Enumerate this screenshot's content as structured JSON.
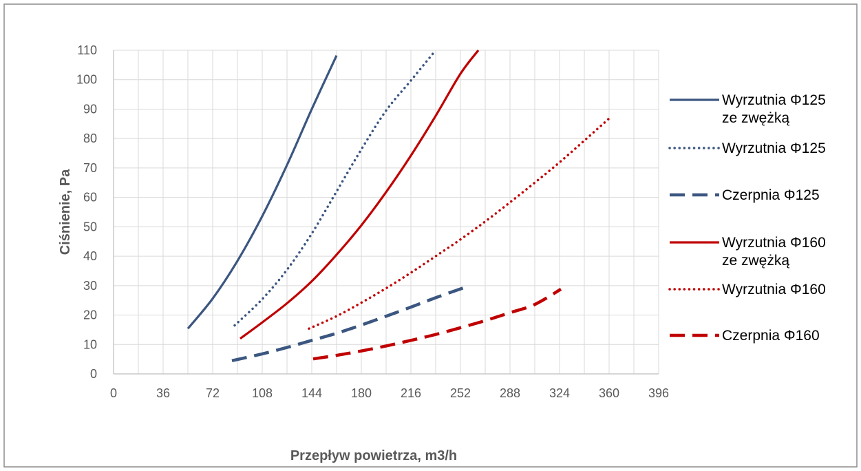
{
  "chart_data": {
    "type": "line",
    "title": "",
    "xlabel": "Przepływ powietrza, m3/h",
    "ylabel": "Ciśnienie, Pa",
    "xlim": [
      0,
      396
    ],
    "ylim": [
      0,
      110
    ],
    "xticks": [
      0,
      36,
      72,
      108,
      144,
      180,
      216,
      252,
      288,
      324,
      360,
      396
    ],
    "yticks": [
      0,
      10,
      20,
      30,
      40,
      50,
      60,
      70,
      80,
      90,
      100,
      110
    ],
    "grid": true,
    "legend_position": "right",
    "series": [
      {
        "name": "Wyrzutnia Φ125 ze zwężką",
        "legend_lines": [
          "Wyrzutnia Φ125",
          "ze zwężką"
        ],
        "color": "#3b5680",
        "style": "solid",
        "points": [
          [
            54,
            15.4
          ],
          [
            72,
            25.6
          ],
          [
            90,
            38.4
          ],
          [
            108,
            53.6
          ],
          [
            126,
            71
          ],
          [
            144,
            90
          ],
          [
            162,
            108.2
          ]
        ]
      },
      {
        "name": "Wyrzutnia Φ125",
        "legend_lines": [
          "Wyrzutnia Φ125"
        ],
        "color": "#3b5680",
        "style": "dotted",
        "points": [
          [
            88,
            16.5
          ],
          [
            108,
            25.4
          ],
          [
            126,
            35.4
          ],
          [
            144,
            47.7
          ],
          [
            162,
            62
          ],
          [
            180,
            76.3
          ],
          [
            198,
            89.5
          ],
          [
            216,
            99.7
          ],
          [
            234,
            110
          ]
        ]
      },
      {
        "name": "Czerpnia Φ125",
        "legend_lines": [
          "Czerpnia Φ125"
        ],
        "color": "#3b5680",
        "style": "dashed",
        "points": [
          [
            86,
            4.5
          ],
          [
            108,
            6.8
          ],
          [
            126,
            9
          ],
          [
            144,
            11.4
          ],
          [
            162,
            13.8
          ],
          [
            180,
            16.6
          ],
          [
            198,
            19.6
          ],
          [
            216,
            22.7
          ],
          [
            234,
            25.9
          ],
          [
            254,
            29.2
          ]
        ]
      },
      {
        "name": "Wyrzutnia Φ160 ze zwężką",
        "legend_lines": [
          "Wyrzutnia Φ160",
          "ze zwężką"
        ],
        "color": "#c00000",
        "style": "solid",
        "points": [
          [
            92,
            12
          ],
          [
            108,
            17.5
          ],
          [
            126,
            24
          ],
          [
            144,
            31.5
          ],
          [
            162,
            40.5
          ],
          [
            180,
            50.5
          ],
          [
            198,
            61.8
          ],
          [
            216,
            74.2
          ],
          [
            234,
            87.7
          ],
          [
            252,
            102
          ],
          [
            265,
            110
          ]
        ]
      },
      {
        "name": "Wyrzutnia Φ160",
        "legend_lines": [
          "Wyrzutnia Φ160"
        ],
        "color": "#c00000",
        "style": "dotted",
        "points": [
          [
            142,
            15.4
          ],
          [
            162,
            19.6
          ],
          [
            180,
            24.2
          ],
          [
            198,
            29.1
          ],
          [
            216,
            34.4
          ],
          [
            234,
            40
          ],
          [
            252,
            45.7
          ],
          [
            270,
            51.8
          ],
          [
            288,
            58.3
          ],
          [
            306,
            65
          ],
          [
            324,
            71.9
          ],
          [
            342,
            79.3
          ],
          [
            360,
            86.8
          ]
        ]
      },
      {
        "name": "Czerpnia Φ160",
        "legend_lines": [
          "Czerpnia Φ160"
        ],
        "color": "#c00000",
        "style": "dashed",
        "points": [
          [
            145,
            5.1
          ],
          [
            162,
            6.3
          ],
          [
            180,
            7.8
          ],
          [
            198,
            9.5
          ],
          [
            216,
            11.4
          ],
          [
            234,
            13.4
          ],
          [
            252,
            15.7
          ],
          [
            270,
            18.1
          ],
          [
            288,
            20.8
          ],
          [
            306,
            23.6
          ],
          [
            325,
            28.8
          ]
        ]
      }
    ]
  }
}
